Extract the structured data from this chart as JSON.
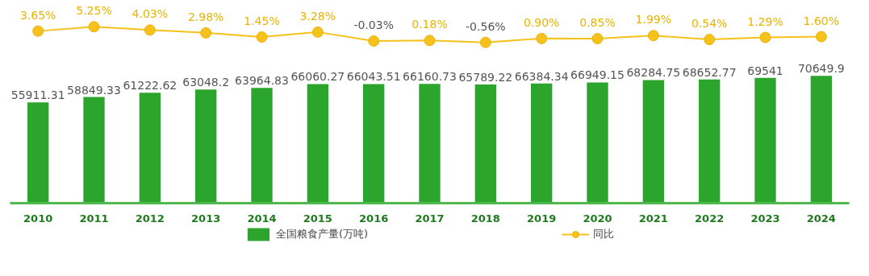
{
  "chart_data": [
    {
      "type": "line",
      "legend": "bottom",
      "tick_labels": false,
      "categories": [
        "2010",
        "2011",
        "2012",
        "2013",
        "2014",
        "2015",
        "2016",
        "2017",
        "2018",
        "2019",
        "2020",
        "2021",
        "2022",
        "2023",
        "2024"
      ],
      "series": [
        {
          "name": "同比",
          "marker": "circle",
          "color": "#f5c21b",
          "values": [
            3.65,
            5.25,
            4.03,
            2.98,
            1.45,
            3.28,
            -0.03,
            0.18,
            -0.56,
            0.9,
            0.85,
            1.99,
            0.54,
            1.29,
            1.6
          ],
          "value_labels": [
            "3.65%",
            "5.25%",
            "4.03%",
            "2.98%",
            "1.45%",
            "3.28%",
            "-0.03%",
            "0.18%",
            "-0.56%",
            "0.90%",
            "0.85%",
            "1.99%",
            "0.54%",
            "1.29%",
            "1.60%"
          ]
        }
      ]
    },
    {
      "type": "bar",
      "legend": "bottom",
      "tick_labels": "x",
      "categories": [
        "2010",
        "2011",
        "2012",
        "2013",
        "2014",
        "2015",
        "2016",
        "2017",
        "2018",
        "2019",
        "2020",
        "2021",
        "2022",
        "2023",
        "2024"
      ],
      "series": [
        {
          "name": "全国粮食产量(万吨)",
          "color": "#2ca52c",
          "values": [
            55911.31,
            58849.33,
            61222.62,
            63048.2,
            63964.83,
            66060.27,
            66043.51,
            66160.73,
            65789.22,
            66384.34,
            66949.15,
            68284.75,
            68652.77,
            69541,
            70649.9
          ],
          "value_labels": [
            "55911.31",
            "58849.33",
            "61222.62",
            "63048.2",
            "63964.83",
            "66060.27",
            "66043.51",
            "66160.73",
            "65789.22",
            "66384.34",
            "66949.15",
            "68284.75",
            "68652.77",
            "69541",
            "70649.9"
          ]
        }
      ]
    }
  ]
}
